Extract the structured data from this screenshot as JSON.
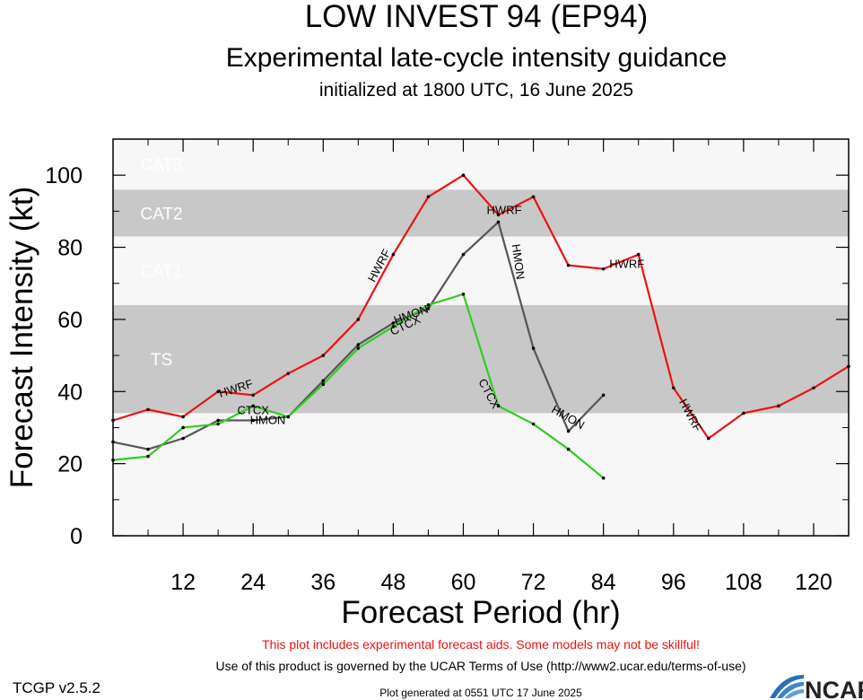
{
  "header": {
    "title": "LOW INVEST 94 (EP94)",
    "subtitle": "Experimental late-cycle intensity guidance",
    "initialized": "initialized at 1800 UTC, 16 June 2025"
  },
  "footer": {
    "warning": "This plot includes experimental forecast aids. Some models may not be skillful!",
    "terms": "Use of this product is governed by the UCAR Terms of Use (http://www2.ucar.edu/terms-of-use)",
    "version": "TCGP v2.5.2",
    "generated": "Plot generated at 0551 UTC   17 June 2025",
    "logo_text": "NCAR"
  },
  "chart_data": {
    "type": "line",
    "xlabel": "Forecast Period (hr)",
    "ylabel": "Forecast Intensity (kt)",
    "xlim": [
      0,
      126
    ],
    "ylim": [
      0,
      110
    ],
    "xticks": [
      12,
      24,
      36,
      48,
      60,
      72,
      84,
      96,
      108,
      120
    ],
    "yticks": [
      0,
      20,
      40,
      60,
      80,
      100
    ],
    "bands": [
      {
        "label": "TS",
        "ymin": 34,
        "ymax": 64,
        "fill": "#c8c8c8"
      },
      {
        "label": "CAT1",
        "ymin": 64,
        "ymax": 83,
        "fill": "#f7f7f7"
      },
      {
        "label": "CAT2",
        "ymin": 83,
        "ymax": 96,
        "fill": "#c8c8c8"
      },
      {
        "label": "CAT3",
        "ymin": 96,
        "ymax": 110,
        "fill": "#f7f7f7"
      }
    ],
    "series": [
      {
        "name": "HWRF",
        "color": "#ee1111",
        "x": [
          0,
          6,
          12,
          18,
          24,
          30,
          36,
          42,
          48,
          54,
          60,
          66,
          72,
          78,
          84,
          90,
          96,
          102,
          108,
          114,
          120,
          126
        ],
        "y": [
          32,
          35,
          33,
          40,
          39,
          45,
          50,
          60,
          78,
          94,
          100,
          89,
          94,
          75,
          74,
          78,
          41,
          27,
          34,
          36,
          41,
          47
        ],
        "labels": [
          {
            "x": 21,
            "y": 41,
            "rotate": -18
          },
          {
            "x": 45.5,
            "y": 75,
            "rotate": -62
          },
          {
            "x": 67,
            "y": 90.5,
            "rotate": 0
          },
          {
            "x": 88,
            "y": 75.5,
            "rotate": 0
          },
          {
            "x": 99,
            "y": 33.5,
            "rotate": 62
          }
        ]
      },
      {
        "name": "HMON",
        "color": "#555555",
        "x": [
          0,
          6,
          12,
          18,
          24,
          30,
          36,
          42,
          48,
          54,
          60,
          66,
          72,
          78,
          84
        ],
        "y": [
          26,
          24,
          27,
          32,
          32,
          33,
          43,
          53,
          59,
          63,
          78,
          87,
          52,
          29,
          39
        ],
        "labels": [
          {
            "x": 26.5,
            "y": 32.2,
            "rotate": 0
          },
          {
            "x": 51,
            "y": 61.5,
            "rotate": -20
          },
          {
            "x": 69.5,
            "y": 76,
            "rotate": 82
          },
          {
            "x": 78,
            "y": 33,
            "rotate": 30
          }
        ]
      },
      {
        "name": "CTCX",
        "color": "#33cc22",
        "x": [
          0,
          6,
          12,
          18,
          24,
          30,
          36,
          42,
          48,
          54,
          60,
          66,
          72,
          78,
          84
        ],
        "y": [
          21,
          22,
          30,
          31,
          36,
          33,
          42,
          52,
          58,
          64,
          67,
          36,
          31,
          24,
          16
        ],
        "labels": [
          {
            "x": 24,
            "y": 35,
            "rotate": 0
          },
          {
            "x": 50,
            "y": 58.5,
            "rotate": -25
          },
          {
            "x": 64.5,
            "y": 39.5,
            "rotate": 62
          }
        ]
      }
    ]
  }
}
